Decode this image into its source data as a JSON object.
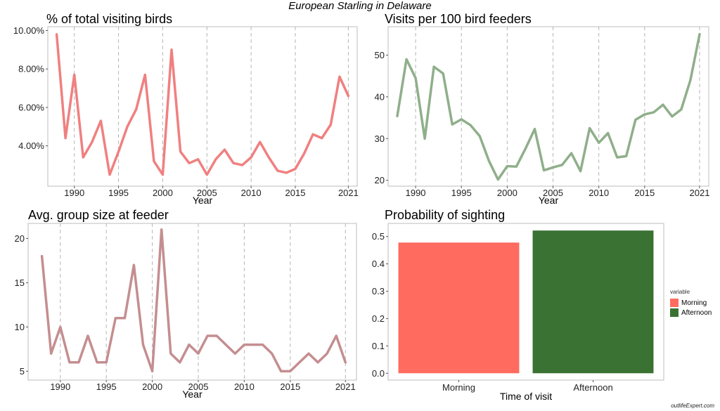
{
  "page": {
    "title": "European Starling in Delaware",
    "credit": "outlifeExpert.com"
  },
  "chart_data": [
    {
      "type": "line",
      "title": "% of total visiting birds",
      "xlabel": "Year",
      "ylabel": "",
      "color": "#F08080",
      "x": [
        1988,
        1989,
        1990,
        1991,
        1992,
        1993,
        1994,
        1995,
        1996,
        1997,
        1998,
        1999,
        2000,
        2001,
        2002,
        2003,
        2004,
        2005,
        2006,
        2007,
        2008,
        2009,
        2010,
        2011,
        2012,
        2013,
        2014,
        2015,
        2016,
        2017,
        2018,
        2019,
        2020,
        2021
      ],
      "values": [
        9.8,
        4.4,
        7.7,
        3.4,
        4.2,
        5.3,
        2.5,
        3.7,
        5.0,
        5.9,
        7.7,
        3.2,
        2.5,
        9.0,
        3.7,
        3.1,
        3.3,
        2.5,
        3.3,
        3.8,
        3.1,
        3.0,
        3.4,
        4.2,
        3.4,
        2.7,
        2.6,
        2.8,
        3.6,
        4.6,
        4.4,
        5.1,
        7.6,
        6.6
      ],
      "xlim": [
        1987,
        2022
      ],
      "ylim": [
        1.9,
        10.2
      ],
      "xticks": [
        1990,
        1995,
        2000,
        2005,
        2010,
        2015,
        2021
      ],
      "xtick_labels": [
        "1990",
        "1995",
        "2000",
        "2005",
        "2010",
        "2015",
        "2021"
      ],
      "yticks": [
        4,
        6,
        8,
        10
      ],
      "ytick_labels": [
        "4.00%",
        "6.00%",
        "8.00%",
        "10.00%"
      ],
      "grid": "vertical-dashed"
    },
    {
      "type": "line",
      "title": "Visits per 100 bird feeders",
      "xlabel": "Year",
      "ylabel": "",
      "color": "#8FAF8A",
      "x": [
        1988,
        1989,
        1990,
        1991,
        1992,
        1993,
        1994,
        1995,
        1996,
        1997,
        1998,
        1999,
        2000,
        2001,
        2002,
        2003,
        2004,
        2005,
        2006,
        2007,
        2008,
        2009,
        2010,
        2011,
        2012,
        2013,
        2014,
        2015,
        2016,
        2017,
        2018,
        2019,
        2020,
        2021
      ],
      "values": [
        35.4,
        49,
        44.5,
        30,
        47.2,
        45.6,
        33.4,
        34.6,
        33.2,
        30.6,
        24.7,
        20.2,
        23.4,
        23.3,
        27.6,
        32.3,
        22.4,
        23.1,
        23.7,
        26.5,
        22.2,
        32.5,
        29,
        31.3,
        25.5,
        25.8,
        34.5,
        35.8,
        36.3,
        38.1,
        35.3,
        37,
        44,
        55
      ],
      "xlim": [
        1987,
        2022
      ],
      "ylim": [
        18.6,
        56.8
      ],
      "xticks": [
        1990,
        1995,
        2000,
        2005,
        2010,
        2015,
        2021
      ],
      "xtick_labels": [
        "1990",
        "1995",
        "2000",
        "2005",
        "2010",
        "2015",
        "2021"
      ],
      "yticks": [
        20,
        30,
        40,
        50
      ],
      "ytick_labels": [
        "20",
        "30",
        "40",
        "50"
      ],
      "grid": "vertical-dashed"
    },
    {
      "type": "line",
      "title": "Avg. group size at feeder",
      "xlabel": "Year",
      "ylabel": "",
      "color": "#C48E90",
      "x": [
        1988,
        1989,
        1990,
        1991,
        1992,
        1993,
        1994,
        1995,
        1996,
        1997,
        1998,
        1999,
        2000,
        2001,
        2002,
        2003,
        2004,
        2005,
        2006,
        2007,
        2008,
        2009,
        2010,
        2011,
        2012,
        2013,
        2014,
        2015,
        2016,
        2017,
        2018,
        2019,
        2020,
        2021
      ],
      "values": [
        18,
        7,
        10,
        6,
        6,
        9,
        6,
        6,
        11,
        11,
        17,
        8,
        5,
        21,
        7,
        6,
        8,
        7,
        9,
        9,
        8,
        7,
        8,
        8,
        8,
        7,
        5,
        5,
        6,
        7,
        6,
        7,
        9,
        6
      ],
      "xlim": [
        1986.5,
        2022.2
      ],
      "ylim": [
        4,
        21.7
      ],
      "xticks": [
        1990,
        1995,
        2000,
        2005,
        2010,
        2015,
        2021
      ],
      "xtick_labels": [
        "1990",
        "1995",
        "2000",
        "2005",
        "2010",
        "2015",
        "2021"
      ],
      "yticks": [
        5,
        10,
        15,
        20
      ],
      "ytick_labels": [
        "5",
        "10",
        "15",
        "20"
      ],
      "grid": "vertical-dashed"
    },
    {
      "type": "bar",
      "title": "Probability of sighting",
      "xlabel": "Time of visit",
      "ylabel": "",
      "categories": [
        "Morning",
        "Afternoon"
      ],
      "values": [
        0.478,
        0.522
      ],
      "colors": [
        "#FF6B5F",
        "#3A7233"
      ],
      "ylim": [
        -0.025,
        0.548
      ],
      "yticks": [
        0,
        0.1,
        0.2,
        0.3,
        0.4,
        0.5
      ],
      "ytick_labels": [
        "0.0",
        "0.1",
        "0.2",
        "0.3",
        "0.4",
        "0.5"
      ],
      "legend": {
        "title": "variable",
        "position": "right",
        "items": [
          {
            "label": "Morning",
            "color": "#FF6B5F"
          },
          {
            "label": "Afternoon",
            "color": "#3A7233"
          }
        ]
      }
    }
  ]
}
